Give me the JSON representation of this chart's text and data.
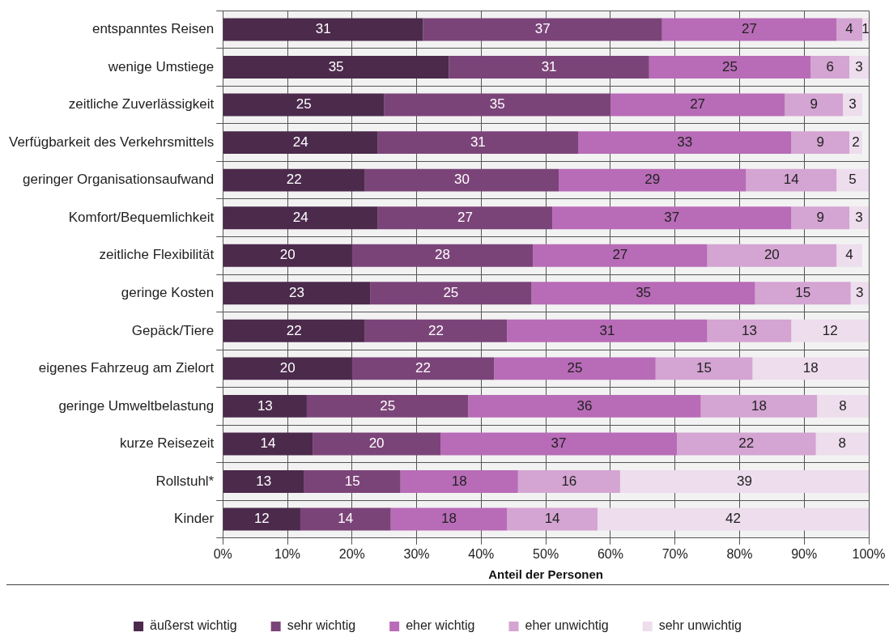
{
  "chart_data": {
    "type": "bar",
    "orientation": "horizontal",
    "stacked": true,
    "grid": true,
    "legend": "bottom",
    "xlabel": "Anteil der Personen",
    "categories": [
      "entspanntes Reisen",
      "wenige Umstiege",
      "zeitliche Zuverlässigkeit",
      "Verfügbarkeit des Verkehrsmittels",
      "geringer Organisationsaufwand",
      "Komfort/Bequemlichkeit",
      "zeitliche Flexibilität",
      "geringe Kosten",
      "Gepäck/Tiere",
      "eigenes Fahrzeug am Zielort",
      "geringe Umweltbelastung",
      "kurze Reisezeit",
      "Rollstuhl*",
      "Kinder"
    ],
    "xlim": [
      0,
      100
    ],
    "xticks": [
      {
        "value": 0,
        "label": "0%"
      },
      {
        "value": 10,
        "label": "10%"
      },
      {
        "value": 20,
        "label": "20%"
      },
      {
        "value": 30,
        "label": "30%"
      },
      {
        "value": 40,
        "label": "40%"
      },
      {
        "value": 50,
        "label": "50%"
      },
      {
        "value": 60,
        "label": "60%"
      },
      {
        "value": 70,
        "label": "70%"
      },
      {
        "value": 80,
        "label": "80%"
      },
      {
        "value": 90,
        "label": "90%"
      },
      {
        "value": 100,
        "label": "100%"
      }
    ],
    "series": [
      {
        "name": "äußerst wichtig",
        "color": "#4b2a4c",
        "values": [
          31,
          35,
          25,
          24,
          22,
          24,
          20,
          22.8,
          22,
          20,
          13,
          13.9,
          12.6,
          12
        ],
        "value_labels": [
          "31",
          "35",
          "25",
          "24",
          "22",
          "24",
          "20",
          "23",
          "22",
          "20",
          "13",
          "14",
          "13",
          "12"
        ]
      },
      {
        "name": "sehr wichtig",
        "color": "#7b4479",
        "values": [
          37,
          31,
          35,
          31,
          30,
          27,
          28,
          25,
          22,
          22,
          25,
          19.8,
          14.9,
          14
        ],
        "value_labels": [
          "37",
          "31",
          "35",
          "31",
          "30",
          "27",
          "28",
          "25",
          "22",
          "22",
          "25",
          "20",
          "15",
          "14"
        ]
      },
      {
        "name": "eher wichtig",
        "color": "#b86bb7",
        "values": [
          27,
          25,
          27,
          33,
          29,
          37,
          27,
          34.6,
          31,
          25,
          36,
          36.6,
          18.2,
          18
        ],
        "value_labels": [
          "27",
          "25",
          "27",
          "33",
          "29",
          "37",
          "27",
          "35",
          "31",
          "25",
          "36",
          "37",
          "18",
          "18"
        ]
      },
      {
        "name": "eher unwichtig",
        "color": "#d4a4d2",
        "values": [
          4,
          6,
          9,
          9,
          14,
          9,
          20,
          14.8,
          13,
          15,
          18,
          21.5,
          15.8,
          14
        ],
        "value_labels": [
          "4",
          "6",
          "9",
          "9",
          "14",
          "9",
          "20",
          "15",
          "13",
          "15",
          "18",
          "22",
          "16",
          "14"
        ]
      },
      {
        "name": "sehr unwichtig",
        "color": "#eddded",
        "values": [
          1,
          3,
          3,
          2,
          5,
          3,
          4,
          2.8,
          12,
          18,
          8,
          8.2,
          38.5,
          42
        ],
        "value_labels": [
          "1",
          "3",
          "3",
          "2",
          "5",
          "3",
          "4",
          "3",
          "12",
          "18",
          "8",
          "8",
          "39",
          "42"
        ]
      }
    ]
  }
}
